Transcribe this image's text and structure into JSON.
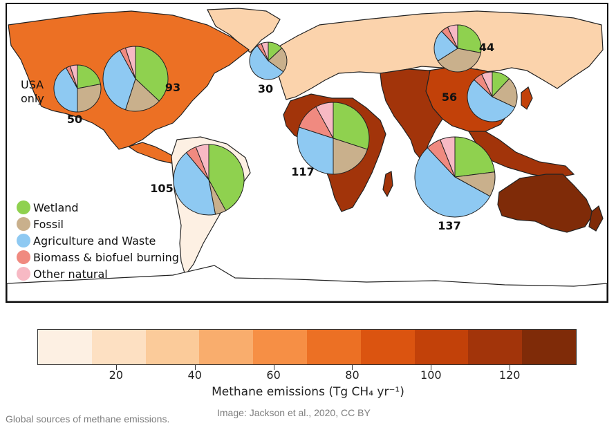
{
  "map": {
    "usa_label_line1": "USA",
    "usa_label_line2": "only",
    "categories": [
      {
        "key": "wetland",
        "label": "Wetland",
        "color": "#8fd14f"
      },
      {
        "key": "fossil",
        "label": "Fossil",
        "color": "#c9b08c"
      },
      {
        "key": "agriculture",
        "label": "Agriculture and Waste",
        "color": "#8ec9f2"
      },
      {
        "key": "biomass",
        "label": "Biomass & biofuel burning",
        "color": "#f08a80"
      },
      {
        "key": "other",
        "label": "Other natural",
        "color": "#f7b9c4"
      }
    ],
    "regions": [
      {
        "name": "usa",
        "label": "50",
        "total": 50,
        "shares": {
          "wetland": 0.22,
          "fossil": 0.28,
          "agriculture": 0.42,
          "biomass": 0.03,
          "other": 0.05
        }
      },
      {
        "name": "north-america",
        "label": "93",
        "total": 93,
        "shares": {
          "wetland": 0.37,
          "fossil": 0.18,
          "agriculture": 0.37,
          "biomass": 0.03,
          "other": 0.05
        }
      },
      {
        "name": "europe",
        "label": "30",
        "total": 30,
        "shares": {
          "wetland": 0.13,
          "fossil": 0.22,
          "agriculture": 0.55,
          "biomass": 0.04,
          "other": 0.06
        }
      },
      {
        "name": "russia",
        "label": "44",
        "total": 44,
        "shares": {
          "wetland": 0.28,
          "fossil": 0.38,
          "agriculture": 0.22,
          "biomass": 0.05,
          "other": 0.07
        }
      },
      {
        "name": "china",
        "label": "56",
        "total": 56,
        "shares": {
          "wetland": 0.12,
          "fossil": 0.2,
          "agriculture": 0.55,
          "biomass": 0.06,
          "other": 0.07
        }
      },
      {
        "name": "africa",
        "label": "117",
        "total": 117,
        "shares": {
          "wetland": 0.3,
          "fossil": 0.2,
          "agriculture": 0.3,
          "biomass": 0.12,
          "other": 0.08
        }
      },
      {
        "name": "south-america",
        "label": "105",
        "total": 105,
        "shares": {
          "wetland": 0.42,
          "fossil": 0.05,
          "agriculture": 0.42,
          "biomass": 0.05,
          "other": 0.06
        }
      },
      {
        "name": "south-asia",
        "label": "137",
        "total": 137,
        "shares": {
          "wetland": 0.23,
          "fossil": 0.1,
          "agriculture": 0.55,
          "biomass": 0.06,
          "other": 0.06
        }
      }
    ]
  },
  "colorbar": {
    "title": "Methane emissions (Tg CH₄ yr⁻¹)",
    "ticks": [
      20,
      40,
      60,
      80,
      100,
      120
    ],
    "range": [
      0,
      137
    ],
    "colors": [
      "#fdf0e3",
      "#fde0c2",
      "#fbcb9a",
      "#f9ad6d",
      "#f68f45",
      "#ec7024",
      "#db5410",
      "#c24109",
      "#a2340a",
      "#7f2b08"
    ]
  },
  "caption": "Global sources of methane emissions.",
  "credit": "Image: Jackson et al., 2020, CC BY"
}
